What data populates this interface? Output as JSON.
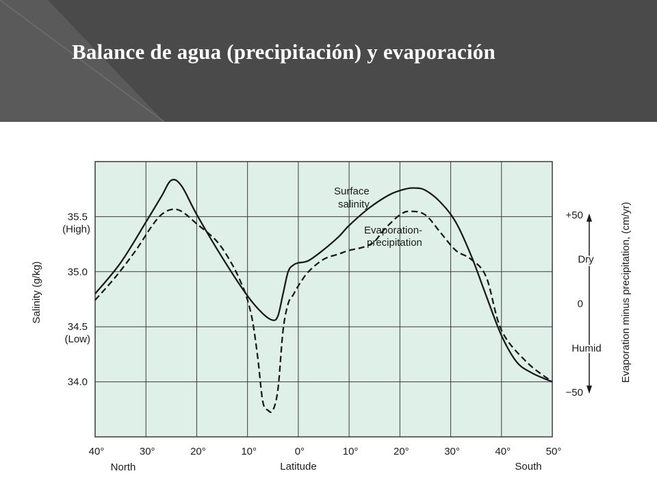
{
  "slide": {
    "title": "Balance de agua (precipitación) y evaporación"
  },
  "colors": {
    "header_bg": "#4a4a4a",
    "plot_bg": "#dff0e8",
    "grid": "#3a3a3a",
    "line": "#1a1a1a"
  },
  "chart_data": {
    "type": "line",
    "title": "",
    "xlabel": "Latitude",
    "x_tick_labels": [
      "40°",
      "30°",
      "20°",
      "10°",
      "0°",
      "10°",
      "20°",
      "30°",
      "40°",
      "50°"
    ],
    "x_hemisphere_labels": {
      "left": "North",
      "right": "South"
    },
    "x_range": [
      -40,
      50
    ],
    "x_note": "negative = North latitude, positive = South latitude",
    "y_left": {
      "label": "Salinity (g/kg)",
      "range": [
        33.5,
        36.0
      ],
      "ticks": [
        {
          "value": 35.5,
          "label": "35.5",
          "sublabel": "(High)"
        },
        {
          "value": 35.0,
          "label": "35.0",
          "sublabel": ""
        },
        {
          "value": 34.5,
          "label": "34.5",
          "sublabel": "(Low)"
        },
        {
          "value": 34.0,
          "label": "34.0",
          "sublabel": ""
        }
      ]
    },
    "y_right": {
      "label": "Evaporation minus precipitation, (cm/yr)",
      "range": [
        -75,
        80
      ],
      "ticks": [
        {
          "value": 50,
          "label": "+50"
        },
        {
          "value": 0,
          "label": "0"
        },
        {
          "value": -50,
          "label": "−50"
        }
      ],
      "annotations": {
        "up": "Dry",
        "down": "Humid"
      }
    },
    "grid": true,
    "series": [
      {
        "name": "Surface salinity",
        "label_lines": [
          "Surface",
          "salinity"
        ],
        "axis": "left",
        "style": "solid",
        "x": [
          -40,
          -35,
          -30,
          -27,
          -25,
          -23,
          -20,
          -15,
          -10,
          -7,
          -5,
          -4,
          -3,
          -2,
          -1,
          0,
          2,
          5,
          8,
          10,
          14,
          18,
          21,
          23,
          25,
          28,
          31,
          34,
          37,
          40,
          43,
          46,
          50
        ],
        "y": [
          34.8,
          35.08,
          35.45,
          35.68,
          35.83,
          35.78,
          35.52,
          35.13,
          34.78,
          34.62,
          34.56,
          34.6,
          34.8,
          35.0,
          35.06,
          35.08,
          35.1,
          35.2,
          35.32,
          35.42,
          35.58,
          35.7,
          35.75,
          35.76,
          35.74,
          35.63,
          35.45,
          35.15,
          34.78,
          34.42,
          34.18,
          34.08,
          34.0
        ]
      },
      {
        "name": "Evaporation-precipitation",
        "label_lines": [
          "Evaporation-",
          "precipitation"
        ],
        "axis": "right",
        "style": "dashed",
        "x": [
          -40,
          -36,
          -32,
          -29,
          -27,
          -25,
          -23,
          -20,
          -16,
          -13,
          -11,
          -10,
          -9,
          -8,
          -7,
          -6,
          -5,
          -4,
          -3,
          -2,
          -1,
          0,
          2,
          5,
          8,
          10,
          13,
          15,
          17,
          20,
          22,
          25,
          28,
          31,
          34,
          37,
          40,
          45,
          50
        ],
        "y": [
          2,
          15,
          30,
          43,
          50,
          53,
          52,
          45,
          35,
          22,
          10,
          2,
          -10,
          -30,
          -55,
          -60,
          -60,
          -48,
          -15,
          0,
          5,
          10,
          18,
          25,
          28,
          30,
          32,
          35,
          42,
          50,
          52,
          50,
          40,
          30,
          25,
          15,
          -15,
          -33,
          -44
        ]
      }
    ]
  }
}
